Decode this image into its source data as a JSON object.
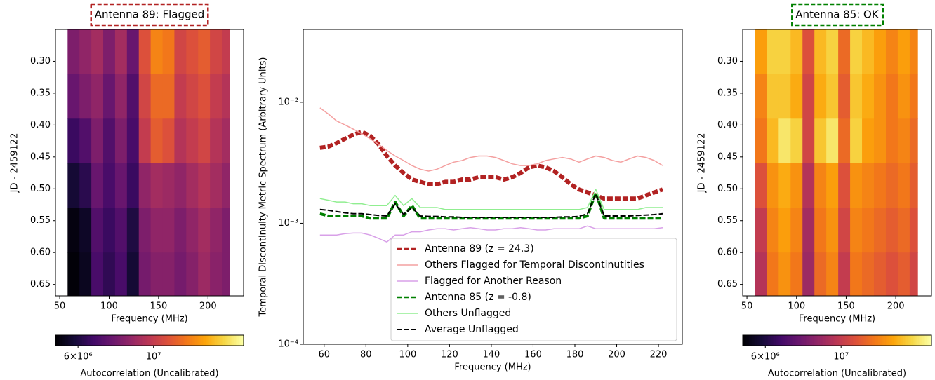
{
  "chart_data": [
    {
      "type": "heatmap",
      "title": "Antenna 89: Flagged",
      "title_border_color": "#b22222",
      "xlabel": "Frequency (MHz)",
      "ylabel": "JD - 2459122",
      "xlim": [
        45.7,
        236
      ],
      "xticks": [
        50,
        100,
        150,
        200
      ],
      "ylim": [
        0.668,
        0.25
      ],
      "yticks": [
        {
          "value": 0.3,
          "label": "0.30"
        },
        0.35,
        {
          "value": 0.4,
          "label": "0.40"
        },
        0.45,
        {
          "value": 0.5,
          "label": "0.50"
        },
        0.55,
        {
          "value": 0.6,
          "label": "0.60"
        },
        0.65
      ],
      "xbins": [
        58,
        70,
        82,
        94,
        106,
        118,
        130,
        142,
        154,
        166,
        178,
        190,
        202,
        214,
        222
      ],
      "ybins": [
        0.25,
        0.32,
        0.39,
        0.46,
        0.53,
        0.6,
        0.668
      ],
      "values": [
        [
          8000000.0,
          8500000.0,
          9000000.0,
          8000000.0,
          9000000.0,
          7500000.0,
          11000000.0,
          13000000.0,
          12500000.0,
          10500000.0,
          11000000.0,
          11500000.0,
          10500000.0,
          10000000.0
        ],
        [
          7500000.0,
          8000000.0,
          8500000.0,
          7500000.0,
          8500000.0,
          7000000.0,
          10500000.0,
          12000000.0,
          12000000.0,
          10000000.0,
          10500000.0,
          11000000.0,
          10000000.0,
          9500000.0
        ],
        [
          6500000.0,
          7000000.0,
          8000000.0,
          7000000.0,
          8000000.0,
          6800000.0,
          10000000.0,
          11500000.0,
          11000000.0,
          9500000.0,
          10000000.0,
          10500000.0,
          9500000.0,
          9000000.0
        ],
        [
          5800000.0,
          6200000.0,
          7500000.0,
          6800000.0,
          7500000.0,
          6500000.0,
          8500000.0,
          9000000.0,
          8800000.0,
          8500000.0,
          9000000.0,
          9500000.0,
          9000000.0,
          8500000.0
        ],
        [
          5300000.0,
          5600000.0,
          7000000.0,
          6500000.0,
          7000000.0,
          6000000.0,
          8000000.0,
          8500000.0,
          8500000.0,
          8000000.0,
          8500000.0,
          9000000.0,
          8500000.0,
          8000000.0
        ],
        [
          5200000.0,
          5500000.0,
          6800000.0,
          6300000.0,
          6800000.0,
          5800000.0,
          7800000.0,
          8200000.0,
          8200000.0,
          7800000.0,
          8200000.0,
          8800000.0,
          8300000.0,
          8000000.0
        ]
      ],
      "colormap": "inferno",
      "clim": [
        5150000.0,
        18400000.0
      ],
      "clog": true,
      "cticks": [
        {
          "value": 6000000,
          "label": "6×10⁶"
        },
        {
          "value": 10000000,
          "label": "10⁷"
        }
      ],
      "clabel": "Autocorrelation (Uncalibrated)"
    },
    {
      "type": "line",
      "xlabel": "Frequency (MHz)",
      "ylabel": "Temporal Discontinuity Metric Spectrum (Arbitrary Units)",
      "xlim": [
        50,
        231.4
      ],
      "xticks": [
        60,
        80,
        100,
        120,
        140,
        160,
        180,
        200,
        220
      ],
      "ylim": [
        0.0001,
        0.04
      ],
      "ylog": true,
      "yticks": [
        {
          "value": 0.0001,
          "label": "10⁻⁴"
        },
        {
          "value": 0.001,
          "label": "10⁻³"
        },
        {
          "value": 0.01,
          "label": "10⁻²"
        }
      ],
      "legend": "lower right",
      "x": [
        58,
        62,
        66,
        70,
        74,
        78,
        82,
        86,
        90,
        94,
        98,
        102,
        106,
        110,
        114,
        118,
        122,
        126,
        130,
        134,
        138,
        142,
        146,
        150,
        154,
        158,
        162,
        166,
        170,
        174,
        178,
        182,
        186,
        190,
        194,
        198,
        202,
        206,
        210,
        214,
        218,
        222
      ],
      "series": [
        {
          "name": "Antenna 89 (z = 24.3)",
          "color": "#b22222",
          "linestyle": "dashed",
          "linewidth": 6,
          "values": [
            0.0042,
            0.0043,
            0.0046,
            0.005,
            0.0054,
            0.0057,
            0.0053,
            0.0045,
            0.0036,
            0.003,
            0.0026,
            0.0023,
            0.0022,
            0.0021,
            0.0021,
            0.0022,
            0.0022,
            0.0023,
            0.0023,
            0.0024,
            0.0024,
            0.0024,
            0.0023,
            0.0024,
            0.0026,
            0.0029,
            0.003,
            0.0029,
            0.0027,
            0.0024,
            0.0021,
            0.0019,
            0.0018,
            0.0017,
            0.0016,
            0.0016,
            0.0016,
            0.0016,
            0.0016,
            0.0017,
            0.0018,
            0.0019
          ]
        },
        {
          "name": "Others Flagged for Temporal Discontinutities",
          "color": "#f4a0a0",
          "linestyle": "solid",
          "linewidth": 1.5,
          "values": [
            0.009,
            0.008,
            0.007,
            0.0065,
            0.006,
            0.0055,
            0.005,
            0.0045,
            0.004,
            0.0036,
            0.0033,
            0.003,
            0.0028,
            0.0027,
            0.0028,
            0.003,
            0.0032,
            0.0033,
            0.0035,
            0.0036,
            0.0036,
            0.0035,
            0.0033,
            0.0031,
            0.003,
            0.003,
            0.0031,
            0.0033,
            0.0034,
            0.0035,
            0.0034,
            0.0032,
            0.0034,
            0.0036,
            0.0035,
            0.0033,
            0.0032,
            0.0034,
            0.0036,
            0.0035,
            0.0033,
            0.003
          ]
        },
        {
          "name": "Flagged for Another Reason",
          "color": "#d8a0e8",
          "linestyle": "solid",
          "linewidth": 1.5,
          "values": [
            0.0008,
            0.0008,
            0.0008,
            0.00082,
            0.00083,
            0.00083,
            0.0008,
            0.00075,
            0.0007,
            0.0008,
            0.0008,
            0.00085,
            0.00085,
            0.00088,
            0.0009,
            0.0009,
            0.00088,
            0.0009,
            0.00092,
            0.0009,
            0.00088,
            0.00088,
            0.0009,
            0.0009,
            0.00092,
            0.0009,
            0.00088,
            0.00088,
            0.0009,
            0.0009,
            0.0009,
            0.0009,
            0.00095,
            0.0009,
            0.0009,
            0.0009,
            0.0009,
            0.0009,
            0.0009,
            0.0009,
            0.0009,
            0.00092
          ]
        },
        {
          "name": "Antenna 85 (z = -0.8)",
          "color": "#008000",
          "linestyle": "dashed",
          "linewidth": 4,
          "values": [
            0.0012,
            0.00115,
            0.00115,
            0.00115,
            0.00115,
            0.00115,
            0.0011,
            0.0011,
            0.0011,
            0.0015,
            0.00115,
            0.0014,
            0.0011,
            0.0011,
            0.0011,
            0.0011,
            0.0011,
            0.0011,
            0.0011,
            0.0011,
            0.0011,
            0.0011,
            0.0011,
            0.0011,
            0.0011,
            0.0011,
            0.0011,
            0.0011,
            0.0011,
            0.0011,
            0.0011,
            0.0011,
            0.00115,
            0.0018,
            0.0011,
            0.0011,
            0.0011,
            0.0011,
            0.0011,
            0.0011,
            0.0011,
            0.0011
          ]
        },
        {
          "name": "Others Unflagged",
          "color": "#90ee90",
          "linestyle": "solid",
          "linewidth": 1.5,
          "values": [
            0.0016,
            0.00155,
            0.0015,
            0.0015,
            0.00145,
            0.00145,
            0.0014,
            0.0014,
            0.0014,
            0.0017,
            0.0014,
            0.0016,
            0.00135,
            0.00135,
            0.00135,
            0.0013,
            0.0013,
            0.0013,
            0.0013,
            0.0013,
            0.0013,
            0.0013,
            0.0013,
            0.0013,
            0.0013,
            0.0013,
            0.0013,
            0.0013,
            0.0013,
            0.0013,
            0.0013,
            0.0013,
            0.00135,
            0.0019,
            0.0013,
            0.0013,
            0.0013,
            0.0013,
            0.0013,
            0.00135,
            0.00135,
            0.00135
          ]
        },
        {
          "name": "Average Unflagged",
          "color": "#000000",
          "linestyle": "dashed",
          "linewidth": 2,
          "values": [
            0.0013,
            0.00128,
            0.00125,
            0.00122,
            0.0012,
            0.0012,
            0.00118,
            0.00116,
            0.00115,
            0.00145,
            0.00118,
            0.00135,
            0.00115,
            0.00114,
            0.00114,
            0.00113,
            0.00113,
            0.00112,
            0.00112,
            0.00112,
            0.00112,
            0.00112,
            0.00112,
            0.00112,
            0.00112,
            0.00112,
            0.00112,
            0.00112,
            0.00112,
            0.00113,
            0.00113,
            0.00114,
            0.0012,
            0.00175,
            0.00115,
            0.00115,
            0.00115,
            0.00115,
            0.00116,
            0.00117,
            0.00118,
            0.0012
          ]
        }
      ]
    },
    {
      "type": "heatmap",
      "title": "Antenna 85: OK",
      "title_border_color": "#008000",
      "xlabel": "Frequency (MHz)",
      "ylabel": "JD - 2459122",
      "xlim": [
        45.7,
        236
      ],
      "xticks": [
        50,
        100,
        150,
        200
      ],
      "ylim": [
        0.668,
        0.25
      ],
      "yticks": [
        {
          "value": 0.3,
          "label": "0.30"
        },
        0.35,
        {
          "value": 0.4,
          "label": "0.40"
        },
        0.45,
        {
          "value": 0.5,
          "label": "0.50"
        },
        0.55,
        {
          "value": 0.6,
          "label": "0.60"
        },
        0.65
      ],
      "xbins": [
        58,
        70,
        82,
        94,
        106,
        118,
        130,
        142,
        154,
        166,
        178,
        190,
        202,
        214,
        222
      ],
      "ybins": [
        0.25,
        0.32,
        0.39,
        0.46,
        0.53,
        0.6,
        0.668
      ],
      "values": [
        [
          14000000.0,
          16000000.0,
          16000000.0,
          15000000.0,
          11000000.0,
          15000000.0,
          16000000.0,
          12000000.0,
          16000000.0,
          15000000.0,
          14000000.0,
          13000000.0,
          14000000.0,
          13000000.0
        ],
        [
          13000000.0,
          15500000.0,
          15500000.0,
          14500000.0,
          10500000.0,
          14500000.0,
          15500000.0,
          11500000.0,
          15500000.0,
          14500000.0,
          13500000.0,
          12500000.0,
          13500000.0,
          12500000.0
        ],
        [
          12500000.0,
          15000000.0,
          17000000.0,
          16000000.0,
          10500000.0,
          15500000.0,
          17000000.0,
          12000000.0,
          16000000.0,
          14000000.0,
          13500000.0,
          12500000.0,
          13000000.0,
          12000000.0
        ],
        [
          11000000.0,
          13500000.0,
          14500000.0,
          13500000.0,
          9500000.0,
          13000000.0,
          14000000.0,
          11000000.0,
          13500000.0,
          13000000.0,
          12500000.0,
          12000000.0,
          12500000.0,
          11500000.0
        ],
        [
          10000000.0,
          13000000.0,
          14000000.0,
          13000000.0,
          9000000.0,
          12500000.0,
          13500000.0,
          10500000.0,
          13000000.0,
          12500000.0,
          12000000.0,
          11500000.0,
          12000000.0,
          11000000.0
        ],
        [
          9500000.0,
          12500000.0,
          13500000.0,
          12500000.0,
          8800000.0,
          12000000.0,
          13000000.0,
          10000000.0,
          12500000.0,
          12000000.0,
          11500000.0,
          11000000.0,
          11500000.0,
          10500000.0
        ]
      ],
      "colormap": "inferno",
      "clim": [
        5150000.0,
        18400000.0
      ],
      "clog": true,
      "cticks": [
        {
          "value": 6000000,
          "label": "6×10⁶"
        },
        {
          "value": 10000000,
          "label": "10⁷"
        }
      ],
      "clabel": "Autocorrelation (Uncalibrated)"
    }
  ]
}
